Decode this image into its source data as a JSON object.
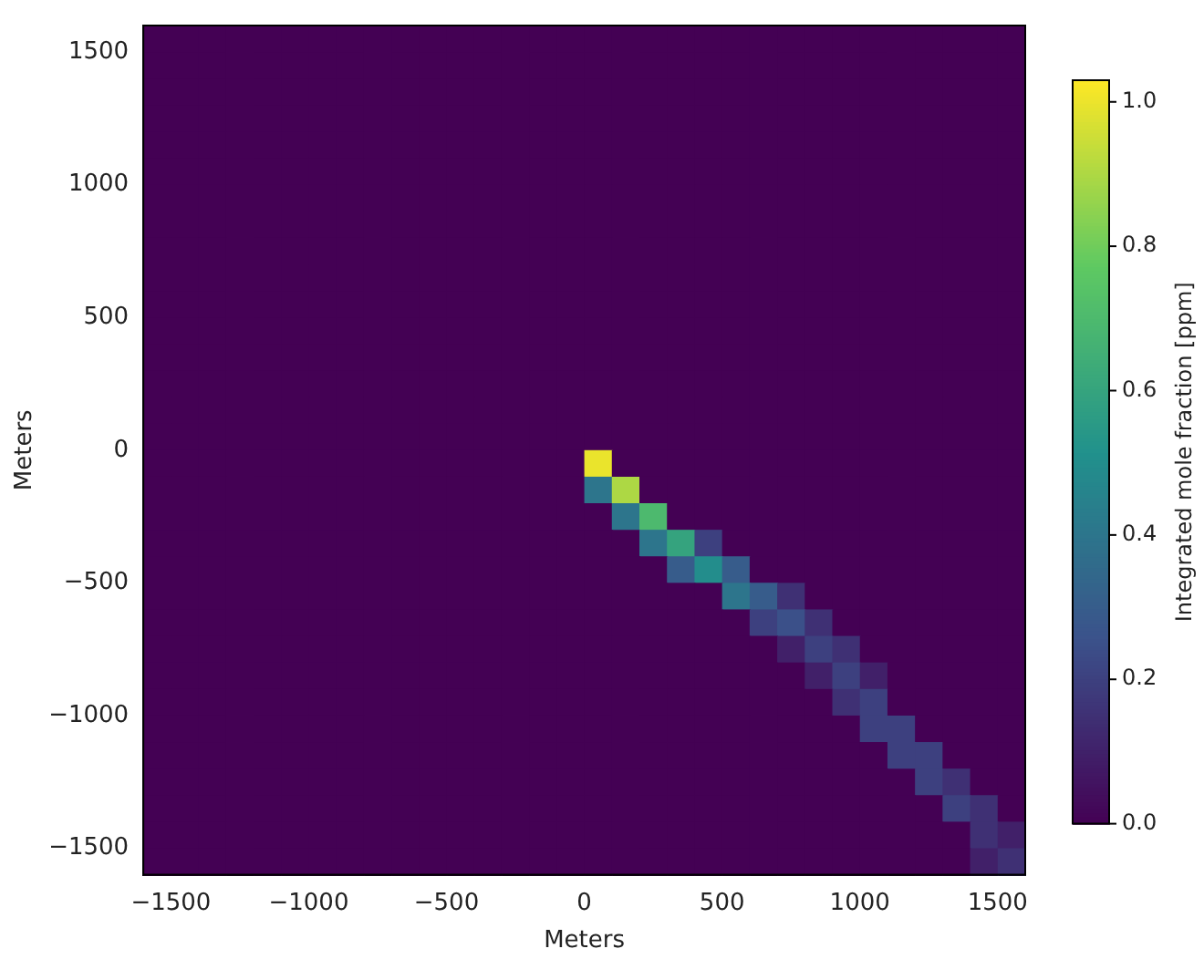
{
  "chart_data": {
    "type": "heatmap",
    "xlabel": "Meters",
    "ylabel": "Meters",
    "clabel": "Integrated mole fraction [ppm]",
    "x": [
      -1550,
      -1450,
      -1350,
      -1250,
      -1150,
      -1050,
      -950,
      -850,
      -750,
      -650,
      -550,
      -450,
      -350,
      -250,
      -150,
      -50,
      50,
      150,
      250,
      350,
      450,
      550,
      650,
      750,
      850,
      950,
      1050,
      1150,
      1250,
      1350,
      1450,
      1550
    ],
    "y": [
      1550,
      1450,
      1350,
      1250,
      1150,
      1050,
      950,
      850,
      750,
      650,
      550,
      450,
      350,
      250,
      150,
      50,
      -50,
      -150,
      -250,
      -350,
      -450,
      -550,
      -650,
      -750,
      -850,
      -950,
      -1050,
      -1150,
      -1250,
      -1350,
      -1450,
      -1550
    ],
    "xlim": [
      -1600,
      1600
    ],
    "ylim": [
      -1600,
      1600
    ],
    "xticks": [
      {
        "value": -1500,
        "label": "−1500"
      },
      {
        "value": -1000,
        "label": "−1000"
      },
      {
        "value": -500,
        "label": "−500"
      },
      0,
      500,
      1000,
      1500
    ],
    "yticks": [
      {
        "value": -1500,
        "label": "−1500"
      },
      {
        "value": -1000,
        "label": "−1000"
      },
      {
        "value": -500,
        "label": "−500"
      },
      0,
      500,
      1000,
      1500
    ],
    "clim": [
      0,
      1.03
    ],
    "cticks": [
      {
        "value": 0,
        "label": "0.0"
      },
      0.2,
      0.4,
      0.6,
      0.8,
      {
        "value": 1,
        "label": "1.0"
      }
    ],
    "cells": [
      [
        0,
        0,
        0,
        0,
        0,
        0,
        0,
        0,
        0,
        0,
        0,
        0,
        0,
        0,
        0,
        0,
        0,
        0,
        0,
        0,
        0,
        0,
        0,
        0,
        0,
        0,
        0,
        0,
        0,
        0,
        0,
        0
      ],
      [
        0,
        0,
        0,
        0,
        0,
        0,
        0,
        0,
        0,
        0,
        0,
        0,
        0,
        0,
        0,
        0,
        0,
        0,
        0,
        0,
        0,
        0,
        0,
        0,
        0,
        0,
        0,
        0,
        0,
        0,
        0,
        0
      ],
      [
        0,
        0,
        0,
        0,
        0,
        0,
        0,
        0,
        0,
        0,
        0,
        0,
        0,
        0,
        0,
        0,
        0,
        0,
        0,
        0,
        0,
        0,
        0,
        0,
        0,
        0,
        0,
        0,
        0,
        0,
        0,
        0
      ],
      [
        0,
        0,
        0,
        0,
        0,
        0,
        0,
        0,
        0,
        0,
        0,
        0,
        0,
        0,
        0,
        0,
        0,
        0,
        0,
        0,
        0,
        0,
        0,
        0,
        0,
        0,
        0,
        0,
        0,
        0,
        0,
        0
      ],
      [
        0,
        0,
        0,
        0,
        0,
        0,
        0,
        0,
        0,
        0,
        0,
        0,
        0,
        0,
        0,
        0,
        0,
        0,
        0,
        0,
        0,
        0,
        0,
        0,
        0,
        0,
        0,
        0,
        0,
        0,
        0,
        0
      ],
      [
        0,
        0,
        0,
        0,
        0,
        0,
        0,
        0,
        0,
        0,
        0,
        0,
        0,
        0,
        0,
        0,
        0,
        0,
        0,
        0,
        0,
        0,
        0,
        0,
        0,
        0,
        0,
        0,
        0,
        0,
        0,
        0
      ],
      [
        0,
        0,
        0,
        0,
        0,
        0,
        0,
        0,
        0,
        0,
        0,
        0,
        0,
        0,
        0,
        0,
        0,
        0,
        0,
        0,
        0,
        0,
        0,
        0,
        0,
        0,
        0,
        0,
        0,
        0,
        0,
        0
      ],
      [
        0,
        0,
        0,
        0,
        0,
        0,
        0,
        0,
        0,
        0,
        0,
        0,
        0,
        0,
        0,
        0,
        0,
        0,
        0,
        0,
        0,
        0,
        0,
        0,
        0,
        0,
        0,
        0,
        0,
        0,
        0,
        0
      ],
      [
        0,
        0,
        0,
        0,
        0,
        0,
        0,
        0,
        0,
        0,
        0,
        0,
        0,
        0,
        0,
        0,
        0,
        0,
        0,
        0,
        0,
        0,
        0,
        0,
        0,
        0,
        0,
        0,
        0,
        0,
        0,
        0
      ],
      [
        0,
        0,
        0,
        0,
        0,
        0,
        0,
        0,
        0,
        0,
        0,
        0,
        0,
        0,
        0,
        0,
        0,
        0,
        0,
        0,
        0,
        0,
        0,
        0,
        0,
        0,
        0,
        0,
        0,
        0,
        0,
        0
      ],
      [
        0,
        0,
        0,
        0,
        0,
        0,
        0,
        0,
        0,
        0,
        0,
        0,
        0,
        0,
        0,
        0,
        0,
        0,
        0,
        0,
        0,
        0,
        0,
        0,
        0,
        0,
        0,
        0,
        0,
        0,
        0,
        0
      ],
      [
        0,
        0,
        0,
        0,
        0,
        0,
        0,
        0,
        0,
        0,
        0,
        0,
        0,
        0,
        0,
        0,
        0,
        0,
        0,
        0,
        0,
        0,
        0,
        0,
        0,
        0,
        0,
        0,
        0,
        0,
        0,
        0
      ],
      [
        0,
        0,
        0,
        0,
        0,
        0,
        0,
        0,
        0,
        0,
        0,
        0,
        0,
        0,
        0,
        0,
        0,
        0,
        0,
        0,
        0,
        0,
        0,
        0,
        0,
        0,
        0,
        0,
        0,
        0,
        0,
        0
      ],
      [
        0,
        0,
        0,
        0,
        0,
        0,
        0,
        0,
        0,
        0,
        0,
        0,
        0,
        0,
        0,
        0,
        0,
        0,
        0,
        0,
        0,
        0,
        0,
        0,
        0,
        0,
        0,
        0,
        0,
        0,
        0,
        0
      ],
      [
        0,
        0,
        0,
        0,
        0,
        0,
        0,
        0,
        0,
        0,
        0,
        0,
        0,
        0,
        0,
        0,
        0,
        0,
        0,
        0,
        0,
        0,
        0,
        0,
        0,
        0,
        0,
        0,
        0,
        0,
        0,
        0
      ],
      [
        0,
        0,
        0,
        0,
        0,
        0,
        0,
        0,
        0,
        0,
        0,
        0,
        0,
        0,
        0,
        0,
        0,
        0,
        0,
        0,
        0,
        0,
        0,
        0,
        0,
        0,
        0,
        0,
        0,
        0,
        0,
        0
      ],
      [
        0,
        0,
        0,
        0,
        0,
        0,
        0,
        0,
        0,
        0,
        0,
        0,
        0,
        0,
        0,
        0,
        1.0,
        0,
        0,
        0,
        0,
        0,
        0,
        0,
        0,
        0,
        0,
        0,
        0,
        0,
        0,
        0
      ],
      [
        0,
        0,
        0,
        0,
        0,
        0,
        0,
        0,
        0,
        0,
        0,
        0,
        0,
        0,
        0,
        0,
        0.4,
        0.9,
        0,
        0,
        0,
        0,
        0,
        0,
        0,
        0,
        0,
        0,
        0,
        0,
        0,
        0
      ],
      [
        0,
        0,
        0,
        0,
        0,
        0,
        0,
        0,
        0,
        0,
        0,
        0,
        0,
        0,
        0,
        0,
        0,
        0.4,
        0.7,
        0,
        0,
        0,
        0,
        0,
        0,
        0,
        0,
        0,
        0,
        0,
        0,
        0
      ],
      [
        0,
        0,
        0,
        0,
        0,
        0,
        0,
        0,
        0,
        0,
        0,
        0,
        0,
        0,
        0,
        0,
        0,
        0,
        0.4,
        0.6,
        0.2,
        0,
        0,
        0,
        0,
        0,
        0,
        0,
        0,
        0,
        0,
        0
      ],
      [
        0,
        0,
        0,
        0,
        0,
        0,
        0,
        0,
        0,
        0,
        0,
        0,
        0,
        0,
        0,
        0,
        0,
        0,
        0,
        0.3,
        0.5,
        0.3,
        0,
        0,
        0,
        0,
        0,
        0,
        0,
        0,
        0,
        0
      ],
      [
        0,
        0,
        0,
        0,
        0,
        0,
        0,
        0,
        0,
        0,
        0,
        0,
        0,
        0,
        0,
        0,
        0,
        0,
        0,
        0,
        0,
        0.4,
        0.3,
        0.15,
        0,
        0,
        0,
        0,
        0,
        0,
        0,
        0
      ],
      [
        0,
        0,
        0,
        0,
        0,
        0,
        0,
        0,
        0,
        0,
        0,
        0,
        0,
        0,
        0,
        0,
        0,
        0,
        0,
        0,
        0,
        0,
        0.2,
        0.25,
        0.15,
        0,
        0,
        0,
        0,
        0,
        0,
        0
      ],
      [
        0,
        0,
        0,
        0,
        0,
        0,
        0,
        0,
        0,
        0,
        0,
        0,
        0,
        0,
        0,
        0,
        0,
        0,
        0,
        0,
        0,
        0,
        0,
        0.1,
        0.2,
        0.15,
        0,
        0,
        0,
        0,
        0,
        0
      ],
      [
        0,
        0,
        0,
        0,
        0,
        0,
        0,
        0,
        0,
        0,
        0,
        0,
        0,
        0,
        0,
        0,
        0,
        0,
        0,
        0,
        0,
        0,
        0,
        0,
        0.1,
        0.2,
        0.1,
        0,
        0,
        0,
        0,
        0
      ],
      [
        0,
        0,
        0,
        0,
        0,
        0,
        0,
        0,
        0,
        0,
        0,
        0,
        0,
        0,
        0,
        0,
        0,
        0,
        0,
        0,
        0,
        0,
        0,
        0,
        0,
        0.15,
        0.2,
        0,
        0,
        0,
        0,
        0
      ],
      [
        0,
        0,
        0,
        0,
        0,
        0,
        0,
        0,
        0,
        0,
        0,
        0,
        0,
        0,
        0,
        0,
        0,
        0,
        0,
        0,
        0,
        0,
        0,
        0,
        0,
        0,
        0.2,
        0.2,
        0,
        0,
        0,
        0
      ],
      [
        0,
        0,
        0,
        0,
        0,
        0,
        0,
        0,
        0,
        0,
        0,
        0,
        0,
        0,
        0,
        0,
        0,
        0,
        0,
        0,
        0,
        0,
        0,
        0,
        0,
        0,
        0,
        0.2,
        0.2,
        0,
        0,
        0
      ],
      [
        0,
        0,
        0,
        0,
        0,
        0,
        0,
        0,
        0,
        0,
        0,
        0,
        0,
        0,
        0,
        0,
        0,
        0,
        0,
        0,
        0,
        0,
        0,
        0,
        0,
        0,
        0,
        0,
        0.2,
        0.15,
        0,
        0
      ],
      [
        0,
        0,
        0,
        0,
        0,
        0,
        0,
        0,
        0,
        0,
        0,
        0,
        0,
        0,
        0,
        0,
        0,
        0,
        0,
        0,
        0,
        0,
        0,
        0,
        0,
        0,
        0,
        0,
        0,
        0.2,
        0.15,
        0
      ],
      [
        0,
        0,
        0,
        0,
        0,
        0,
        0,
        0,
        0,
        0,
        0,
        0,
        0,
        0,
        0,
        0,
        0,
        0,
        0,
        0,
        0,
        0,
        0,
        0,
        0,
        0,
        0,
        0,
        0,
        0,
        0.15,
        0.1
      ],
      [
        0,
        0,
        0,
        0,
        0,
        0,
        0,
        0,
        0,
        0,
        0,
        0,
        0,
        0,
        0,
        0,
        0,
        0,
        0,
        0,
        0,
        0,
        0,
        0,
        0,
        0,
        0,
        0,
        0,
        0,
        0.1,
        0.15
      ]
    ]
  }
}
